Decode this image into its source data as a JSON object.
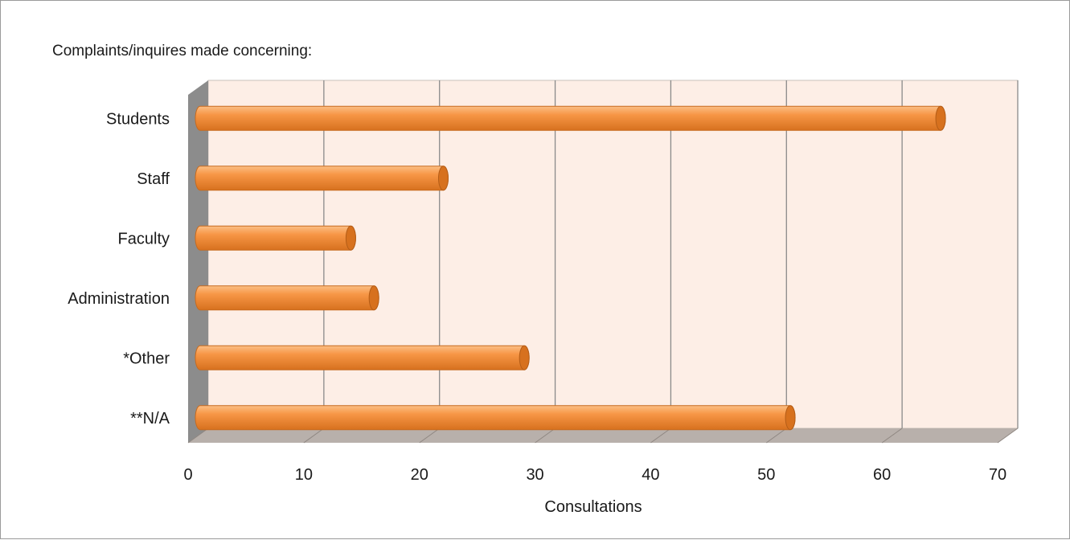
{
  "chart_data": {
    "type": "bar",
    "orientation": "horizontal",
    "title": "Complaints/inquires made concerning:",
    "xlabel": "Consultations",
    "ylabel": "",
    "categories": [
      "Students",
      "Staff",
      "Faculty",
      "Administration",
      "*Other",
      "**N/A"
    ],
    "values": [
      65,
      22,
      14,
      16,
      29,
      52
    ],
    "xlim": [
      0,
      70
    ],
    "xticks": [
      0,
      10,
      20,
      30,
      40,
      50,
      60,
      70
    ],
    "grid": true,
    "legend": "none",
    "colors": {
      "bar": "#f79646",
      "bar_light": "#fbbf85",
      "bar_dark": "#d7711e",
      "plot_background": "#fdeee6",
      "floor": "#b8b0ab",
      "side_wall": "#8c8c8c",
      "gridline": "#8a8a8a"
    }
  }
}
